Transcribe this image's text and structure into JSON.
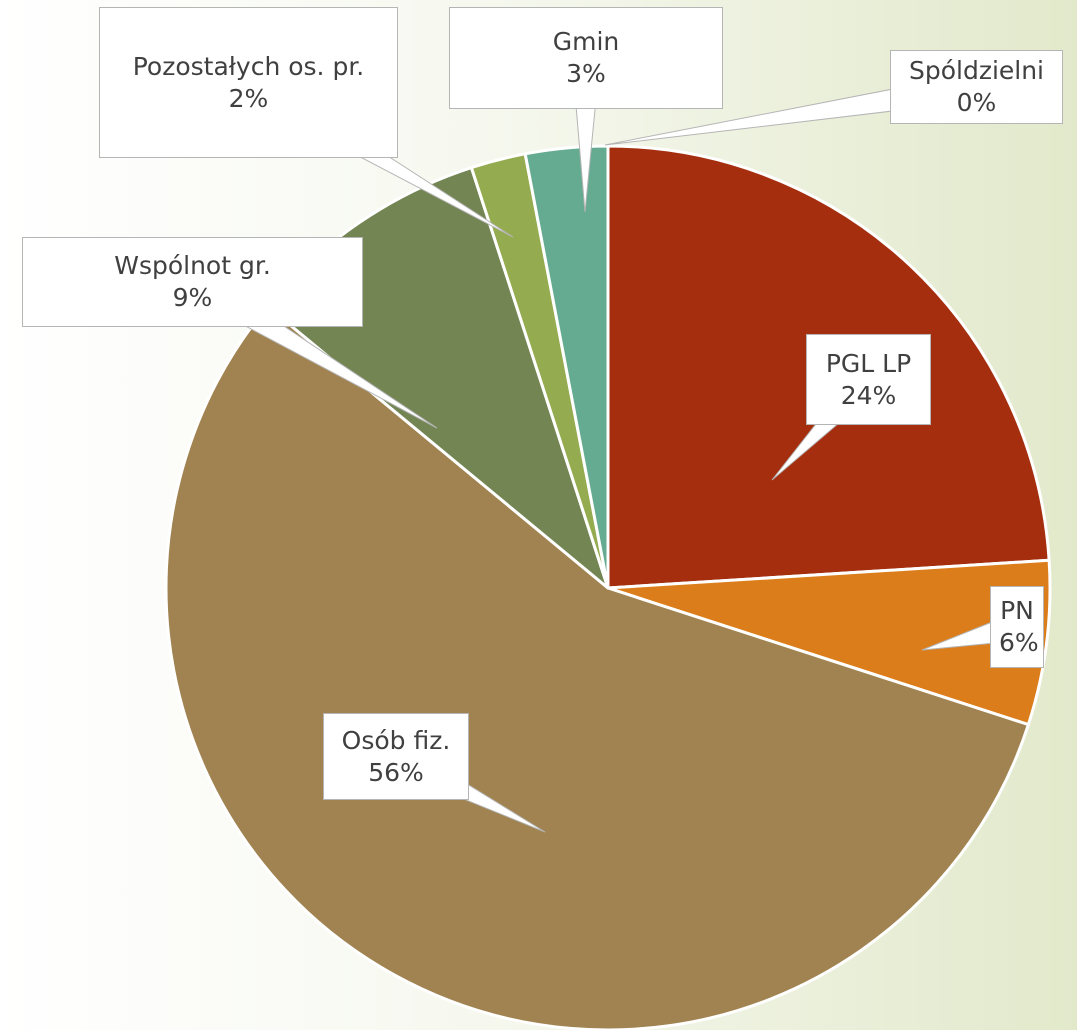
{
  "chart_data": {
    "type": "pie",
    "categories": [
      "PGL LP",
      "PN",
      "Osób fiz.",
      "Wspólnot gr.",
      "Pozostałych os. pr.",
      "Gmin",
      "Spóldzielni"
    ],
    "values": [
      24,
      6,
      56,
      9,
      2,
      3,
      0
    ],
    "value_labels": [
      "24%",
      "6%",
      "56%",
      "9%",
      "2%",
      "3%",
      "0%"
    ],
    "colors": [
      "#a52e0f",
      "#dc7d1b",
      "#a08350",
      "#728553",
      "#94ab50",
      "#65ab92",
      "#65ab92"
    ]
  }
}
